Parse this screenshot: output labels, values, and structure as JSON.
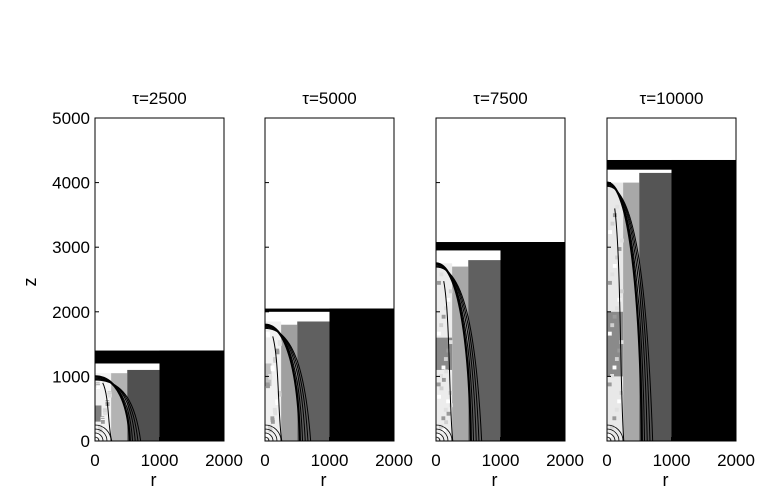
{
  "chart_data": {
    "type": "heatmap",
    "ylabel": "z",
    "xlim": [
      0,
      2000
    ],
    "ylim": [
      0,
      5000
    ],
    "yticks": [
      0,
      1000,
      2000,
      3000,
      4000,
      5000
    ],
    "xticks": [
      0,
      1000,
      2000
    ],
    "panels": [
      {
        "title": "τ=2500",
        "xlabel": "r",
        "front_height": 1400,
        "tip_height": 1000,
        "grid_blocks": [
          {
            "r": [
              0,
              250
            ],
            "z": [
              0,
              1050
            ],
            "shade": "#f2f2f2"
          },
          {
            "r": [
              0,
              100
            ],
            "z": [
              300,
              550
            ],
            "shade": "#808080"
          },
          {
            "r": [
              250,
              500
            ],
            "z": [
              0,
              1050
            ],
            "shade": "#b3b3b3"
          },
          {
            "r": [
              500,
              1000
            ],
            "z": [
              0,
              1100
            ],
            "shade": "#505050"
          },
          {
            "r": [
              1000,
              2000
            ],
            "z": [
              0,
              1400
            ],
            "shade": "#000000"
          }
        ]
      },
      {
        "title": "τ=5000",
        "xlabel": "r",
        "front_height": 2050,
        "tip_height": 1800,
        "grid_blocks": [
          {
            "r": [
              0,
              250
            ],
            "z": [
              0,
              1850
            ],
            "shade": "#f0f0f0"
          },
          {
            "r": [
              0,
              100
            ],
            "z": [
              850,
              1200
            ],
            "shade": "#c0c0c0"
          },
          {
            "r": [
              250,
              500
            ],
            "z": [
              0,
              1800
            ],
            "shade": "#a0a0a0"
          },
          {
            "r": [
              500,
              1000
            ],
            "z": [
              0,
              1850
            ],
            "shade": "#606060"
          },
          {
            "r": [
              1000,
              2000
            ],
            "z": [
              0,
              2050
            ],
            "shade": "#000000"
          }
        ]
      },
      {
        "title": "τ=7500",
        "xlabel": "r",
        "front_height": 3080,
        "tip_height": 2750,
        "grid_blocks": [
          {
            "r": [
              0,
              250
            ],
            "z": [
              0,
              2750
            ],
            "shade": "#ececec"
          },
          {
            "r": [
              0,
              250
            ],
            "z": [
              1100,
              1600
            ],
            "shade": "#8a8a8a"
          },
          {
            "r": [
              250,
              500
            ],
            "z": [
              0,
              2700
            ],
            "shade": "#a8a8a8"
          },
          {
            "r": [
              500,
              1000
            ],
            "z": [
              0,
              2800
            ],
            "shade": "#606060"
          },
          {
            "r": [
              1000,
              2000
            ],
            "z": [
              0,
              3080
            ],
            "shade": "#000000"
          }
        ]
      },
      {
        "title": "τ=10000",
        "xlabel": "r",
        "front_height": 4350,
        "tip_height": 4000,
        "grid_blocks": [
          {
            "r": [
              0,
              250
            ],
            "z": [
              0,
              4000
            ],
            "shade": "#e8e8e8"
          },
          {
            "r": [
              0,
              250
            ],
            "z": [
              1000,
              2000
            ],
            "shade": "#8a8a8a"
          },
          {
            "r": [
              250,
              500
            ],
            "z": [
              0,
              4000
            ],
            "shade": "#a8a8a8"
          },
          {
            "r": [
              500,
              1000
            ],
            "z": [
              0,
              4150
            ],
            "shade": "#555555"
          },
          {
            "r": [
              1000,
              2000
            ],
            "z": [
              0,
              4350
            ],
            "shade": "#000000"
          }
        ]
      }
    ]
  }
}
